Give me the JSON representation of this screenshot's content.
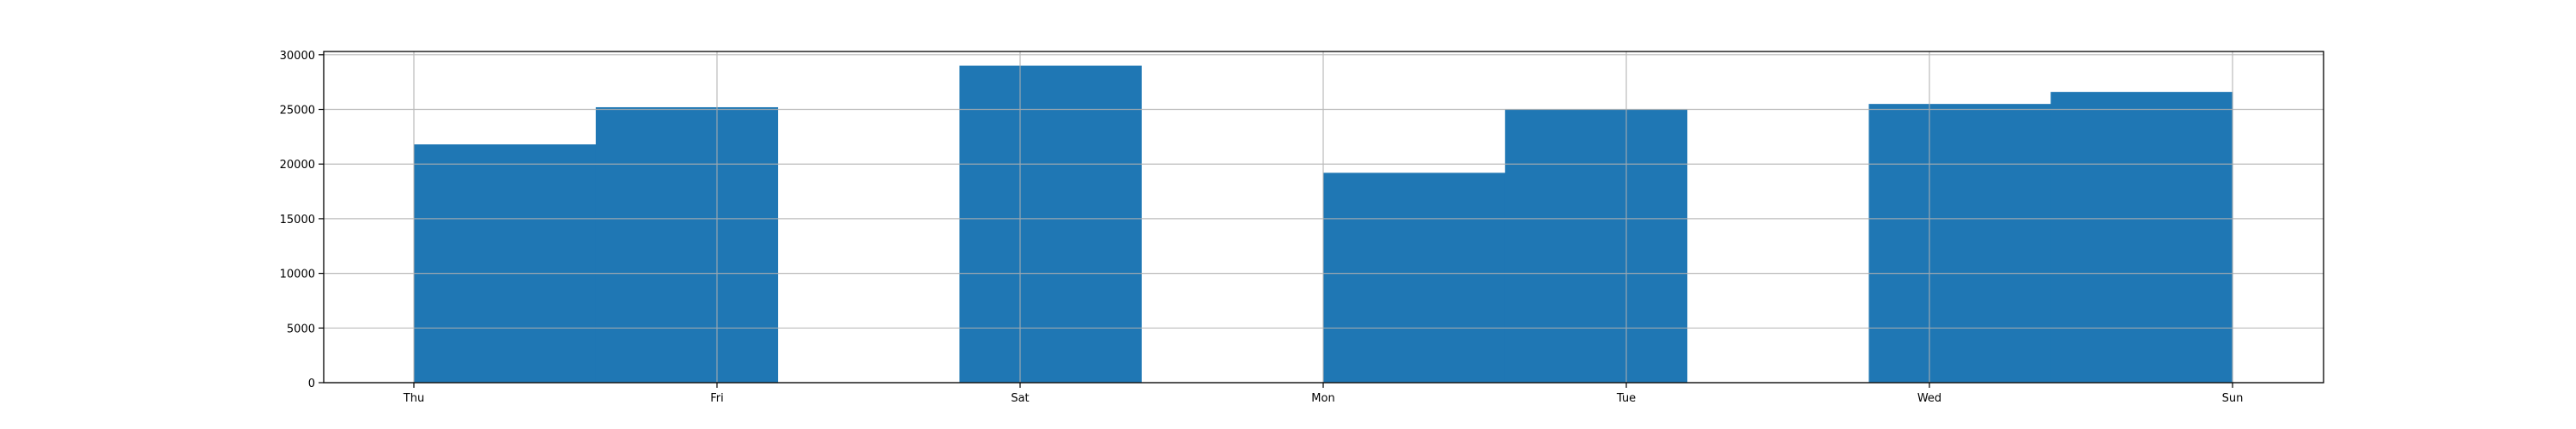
{
  "chart_data": {
    "type": "bar",
    "kind": "histogram",
    "x_tick_labels": [
      "Thu",
      "Fri",
      "Sat",
      "Mon",
      "Tue",
      "Wed",
      "Sun"
    ],
    "bins": [
      {
        "bin": 1,
        "value": 21800
      },
      {
        "bin": 2,
        "value": 25200
      },
      {
        "bin": 3,
        "value": 0
      },
      {
        "bin": 4,
        "value": 29000
      },
      {
        "bin": 5,
        "value": 0
      },
      {
        "bin": 6,
        "value": 19200
      },
      {
        "bin": 7,
        "value": 25000
      },
      {
        "bin": 8,
        "value": 0
      },
      {
        "bin": 9,
        "value": 25500
      },
      {
        "bin": 10,
        "value": 26600
      }
    ],
    "y_ticks": [
      0,
      5000,
      10000,
      15000,
      20000,
      25000,
      30000
    ],
    "ylim": [
      0,
      30300
    ],
    "xlabel": "",
    "ylabel": "",
    "title": "",
    "grid": true,
    "colors": {
      "bar": "#1f77b4",
      "grid": "#b0b0b0",
      "axis": "#000000"
    }
  }
}
